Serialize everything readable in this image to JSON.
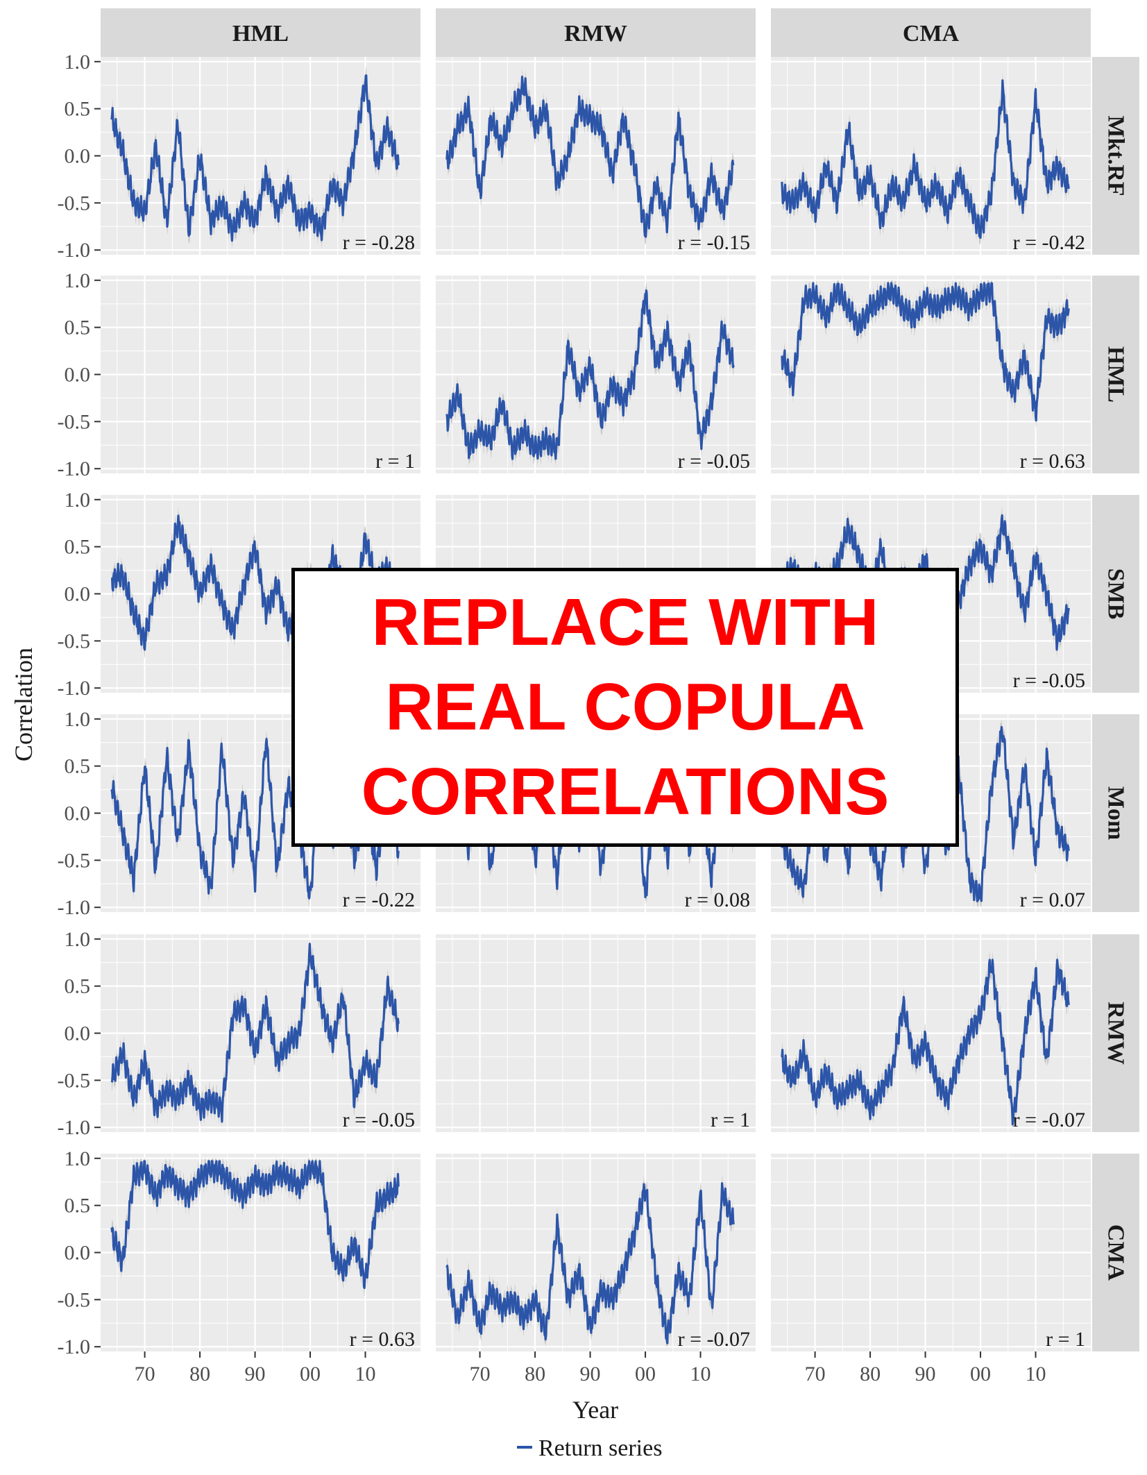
{
  "overlay": {
    "text": "REPLACE WITH\nREAL COPULA\nCORRELATIONS"
  },
  "chart_data": {
    "type": "line",
    "xlabel": "Year",
    "ylabel": "Correlation",
    "legend": {
      "placement": "bottom",
      "entries": [
        "Return series"
      ]
    },
    "colors": {
      "line": "#2c55a8",
      "band": "#c2c2c2",
      "panel": "#ebebeb",
      "grid": "#ffffff",
      "strip": "#d9d9d9"
    },
    "x_ticks": [
      "70",
      "80",
      "90",
      "00",
      "10"
    ],
    "x_tick_values": [
      1970,
      1980,
      1990,
      2000,
      2010
    ],
    "xlim": [
      1962,
      2020
    ],
    "y_ticks": [
      "1.0",
      "0.5",
      "0.0",
      "-0.5",
      "-1.0"
    ],
    "y_tick_values": [
      1.0,
      0.5,
      0.0,
      -0.5,
      -1.0
    ],
    "ylim": [
      -1.05,
      1.05
    ],
    "columns": [
      "HML",
      "RMW",
      "CMA"
    ],
    "rows": [
      "Mkt.RF",
      "HML",
      "SMB",
      "Mom",
      "RMW",
      "CMA"
    ],
    "panels": [
      {
        "row": "Mkt.RF",
        "col": "HML",
        "r_label": "r =  -0.28",
        "x": [
          1964,
          1966,
          1968,
          1970,
          1972,
          1974,
          1976,
          1978,
          1980,
          1982,
          1984,
          1986,
          1988,
          1990,
          1992,
          1994,
          1996,
          1998,
          2000,
          2002,
          2004,
          2006,
          2008,
          2010,
          2012,
          2014,
          2016
        ],
        "y": [
          0.4,
          0.05,
          -0.5,
          -0.6,
          0.1,
          -0.7,
          0.35,
          -0.8,
          0.0,
          -0.7,
          -0.5,
          -0.8,
          -0.5,
          -0.7,
          -0.2,
          -0.6,
          -0.3,
          -0.7,
          -0.6,
          -0.8,
          -0.3,
          -0.5,
          0.05,
          0.8,
          -0.1,
          0.3,
          -0.1
        ]
      },
      {
        "row": "Mkt.RF",
        "col": "RMW",
        "r_label": "r =  -0.15",
        "x": [
          1964,
          1966,
          1968,
          1970,
          1972,
          1974,
          1976,
          1978,
          1980,
          1982,
          1984,
          1986,
          1988,
          1990,
          1992,
          1994,
          1996,
          1998,
          2000,
          2002,
          2004,
          2006,
          2008,
          2010,
          2012,
          2014,
          2016
        ],
        "y": [
          -0.1,
          0.3,
          0.5,
          -0.4,
          0.4,
          0.1,
          0.5,
          0.75,
          0.3,
          0.5,
          -0.3,
          0.0,
          0.5,
          0.4,
          0.3,
          -0.2,
          0.4,
          -0.1,
          -0.8,
          -0.3,
          -0.7,
          0.4,
          -0.4,
          -0.7,
          -0.2,
          -0.6,
          -0.1
        ]
      },
      {
        "row": "Mkt.RF",
        "col": "CMA",
        "r_label": "r =  -0.42",
        "x": [
          1964,
          1966,
          1968,
          1970,
          1972,
          1974,
          1976,
          1978,
          1980,
          1982,
          1984,
          1986,
          1988,
          1990,
          1992,
          1994,
          1996,
          1998,
          2000,
          2002,
          2004,
          2006,
          2008,
          2010,
          2012,
          2014,
          2016
        ],
        "y": [
          -0.4,
          -0.5,
          -0.3,
          -0.6,
          -0.1,
          -0.5,
          0.3,
          -0.4,
          -0.2,
          -0.7,
          -0.3,
          -0.5,
          -0.1,
          -0.5,
          -0.3,
          -0.6,
          -0.2,
          -0.5,
          -0.8,
          -0.4,
          0.7,
          -0.3,
          -0.5,
          0.6,
          -0.3,
          -0.1,
          -0.35
        ]
      },
      {
        "row": "HML",
        "col": "HML",
        "r_label": "r =  1",
        "x": [],
        "y": []
      },
      {
        "row": "HML",
        "col": "RMW",
        "r_label": "r =  -0.05",
        "x": [
          1964,
          1966,
          1968,
          1970,
          1972,
          1974,
          1976,
          1978,
          1980,
          1982,
          1984,
          1986,
          1988,
          1990,
          1992,
          1994,
          1996,
          1998,
          2000,
          2002,
          2004,
          2006,
          2008,
          2010,
          2012,
          2014,
          2016
        ],
        "y": [
          -0.5,
          -0.2,
          -0.8,
          -0.6,
          -0.7,
          -0.3,
          -0.8,
          -0.6,
          -0.8,
          -0.7,
          -0.8,
          0.3,
          -0.2,
          0.1,
          -0.5,
          -0.1,
          -0.3,
          0.0,
          0.85,
          0.1,
          0.45,
          -0.1,
          0.3,
          -0.7,
          -0.3,
          0.5,
          0.1
        ]
      },
      {
        "row": "HML",
        "col": "CMA",
        "r_label": "r =  0.63",
        "x": [
          1964,
          1966,
          1968,
          1970,
          1972,
          1974,
          1976,
          1978,
          1980,
          1982,
          1984,
          1986,
          1988,
          1990,
          1992,
          1994,
          1996,
          1998,
          2000,
          2002,
          2004,
          2006,
          2008,
          2010,
          2012,
          2014,
          2016
        ],
        "y": [
          0.2,
          -0.1,
          0.8,
          0.85,
          0.6,
          0.9,
          0.7,
          0.5,
          0.7,
          0.8,
          0.9,
          0.7,
          0.6,
          0.8,
          0.7,
          0.8,
          0.85,
          0.7,
          0.85,
          0.9,
          0.1,
          -0.2,
          0.2,
          -0.4,
          0.6,
          0.5,
          0.7
        ]
      },
      {
        "row": "SMB",
        "col": "HML",
        "r_label": "",
        "x": [
          1964,
          1966,
          1968,
          1970,
          1972,
          1974,
          1976,
          1978,
          1980,
          1982,
          1984,
          1986,
          1988,
          1990,
          1992,
          1994,
          1996,
          1998,
          2000,
          2002,
          2004,
          2006,
          2008,
          2010,
          2012,
          2014,
          2016
        ],
        "y": [
          0.15,
          0.2,
          -0.2,
          -0.5,
          0.1,
          0.2,
          0.75,
          0.4,
          0.0,
          0.3,
          -0.1,
          -0.4,
          0.1,
          0.5,
          -0.2,
          0.1,
          -0.4,
          0.0,
          0.2,
          -0.3,
          0.4,
          0.1,
          -0.2,
          0.6,
          0.1,
          0.3,
          -0.2
        ]
      },
      {
        "row": "SMB",
        "col": "RMW",
        "r_label": "",
        "x": [],
        "y": []
      },
      {
        "row": "SMB",
        "col": "CMA",
        "r_label": "r =  -0.05",
        "x": [
          1964,
          1966,
          1968,
          1970,
          1972,
          1974,
          1976,
          1978,
          1980,
          1982,
          1984,
          1986,
          1988,
          1990,
          1992,
          1994,
          1996,
          1998,
          2000,
          2002,
          2004,
          2006,
          2008,
          2010,
          2012,
          2014,
          2016
        ],
        "y": [
          0.1,
          0.3,
          0.0,
          0.2,
          0.1,
          0.3,
          0.7,
          0.4,
          0.0,
          0.5,
          -0.2,
          0.2,
          0.0,
          0.4,
          -0.3,
          0.1,
          -0.1,
          0.3,
          0.5,
          0.2,
          0.75,
          0.3,
          -0.2,
          0.4,
          0.0,
          -0.5,
          -0.15
        ]
      },
      {
        "row": "Mom",
        "col": "HML",
        "r_label": "r =  -0.22",
        "x": [
          1964,
          1966,
          1968,
          1970,
          1972,
          1974,
          1976,
          1978,
          1980,
          1982,
          1984,
          1986,
          1988,
          1990,
          1992,
          1994,
          1996,
          1998,
          2000,
          2002,
          2004,
          2006,
          2008,
          2010,
          2012,
          2014,
          2016
        ],
        "y": [
          0.3,
          -0.2,
          -0.7,
          0.5,
          -0.6,
          0.6,
          -0.3,
          0.7,
          -0.4,
          -0.8,
          0.7,
          -0.5,
          0.2,
          -0.7,
          0.8,
          -0.6,
          0.3,
          -0.2,
          -0.9,
          0.6,
          -0.3,
          0.4,
          -0.5,
          0.1,
          -0.6,
          0.3,
          -0.4
        ]
      },
      {
        "row": "Mom",
        "col": "RMW",
        "r_label": "r =  0.08",
        "x": [
          1964,
          1966,
          1968,
          1970,
          1972,
          1974,
          1976,
          1978,
          1980,
          1982,
          1984,
          1986,
          1988,
          1990,
          1992,
          1994,
          1996,
          1998,
          2000,
          2002,
          2004,
          2006,
          2008,
          2010,
          2012,
          2014,
          2016
        ],
        "y": [
          -0.2,
          0.3,
          -0.4,
          0.4,
          -0.6,
          0.5,
          -0.3,
          0.6,
          -0.5,
          0.2,
          -0.7,
          0.5,
          -0.3,
          0.4,
          -0.6,
          0.3,
          -0.2,
          0.5,
          -0.9,
          0.4,
          -0.5,
          0.6,
          -0.4,
          0.2,
          -0.7,
          0.5,
          -0.3
        ]
      },
      {
        "row": "Mom",
        "col": "CMA",
        "r_label": "r =  0.07",
        "x": [
          1964,
          1966,
          1968,
          1970,
          1972,
          1974,
          1976,
          1978,
          1980,
          1982,
          1984,
          1986,
          1988,
          1990,
          1992,
          1994,
          1996,
          1998,
          2000,
          2002,
          2004,
          2006,
          2008,
          2010,
          2012,
          2014,
          2016
        ],
        "y": [
          -0.3,
          -0.6,
          -0.8,
          0.2,
          -0.5,
          0.4,
          -0.6,
          0.5,
          -0.3,
          -0.7,
          0.3,
          -0.5,
          0.4,
          -0.6,
          0.2,
          -0.4,
          0.5,
          -0.7,
          -0.9,
          0.3,
          0.9,
          -0.3,
          0.5,
          -0.5,
          0.6,
          -0.2,
          -0.4
        ]
      },
      {
        "row": "RMW",
        "col": "HML",
        "r_label": "r =  -0.05",
        "x": [
          1964,
          1966,
          1968,
          1970,
          1972,
          1974,
          1976,
          1978,
          1980,
          1982,
          1984,
          1986,
          1988,
          1990,
          1992,
          1994,
          1996,
          1998,
          2000,
          2002,
          2004,
          2006,
          2008,
          2010,
          2012,
          2014,
          2016
        ],
        "y": [
          -0.5,
          -0.2,
          -0.7,
          -0.3,
          -0.8,
          -0.6,
          -0.7,
          -0.5,
          -0.8,
          -0.7,
          -0.8,
          0.2,
          0.3,
          -0.2,
          0.3,
          -0.3,
          -0.1,
          0.0,
          0.85,
          0.3,
          -0.1,
          0.4,
          -0.7,
          -0.3,
          -0.5,
          0.5,
          0.1
        ]
      },
      {
        "row": "RMW",
        "col": "RMW",
        "r_label": "r =  1",
        "x": [],
        "y": []
      },
      {
        "row": "RMW",
        "col": "CMA",
        "r_label": "r =  -0.07",
        "x": [
          1964,
          1966,
          1968,
          1970,
          1972,
          1974,
          1976,
          1978,
          1980,
          1982,
          1984,
          1986,
          1988,
          1990,
          1992,
          1994,
          1996,
          1998,
          2000,
          2002,
          2004,
          2006,
          2008,
          2010,
          2012,
          2014,
          2016
        ],
        "y": [
          -0.3,
          -0.5,
          -0.2,
          -0.7,
          -0.4,
          -0.7,
          -0.6,
          -0.5,
          -0.8,
          -0.6,
          -0.4,
          0.3,
          -0.3,
          -0.1,
          -0.5,
          -0.7,
          -0.3,
          0.0,
          0.2,
          0.75,
          -0.1,
          -0.9,
          0.0,
          0.6,
          -0.3,
          0.7,
          0.3
        ]
      },
      {
        "row": "CMA",
        "col": "HML",
        "r_label": "r =  0.63",
        "x": [
          1964,
          1966,
          1968,
          1970,
          1972,
          1974,
          1976,
          1978,
          1980,
          1982,
          1984,
          1986,
          1988,
          1990,
          1992,
          1994,
          1996,
          1998,
          2000,
          2002,
          2004,
          2006,
          2008,
          2010,
          2012,
          2014,
          2016
        ],
        "y": [
          0.2,
          -0.1,
          0.8,
          0.9,
          0.6,
          0.85,
          0.7,
          0.6,
          0.8,
          0.9,
          0.85,
          0.7,
          0.6,
          0.8,
          0.7,
          0.85,
          0.8,
          0.7,
          0.9,
          0.85,
          0.0,
          -0.2,
          0.1,
          -0.3,
          0.5,
          0.6,
          0.7
        ]
      },
      {
        "row": "CMA",
        "col": "RMW",
        "r_label": "r =  -0.07",
        "x": [
          1964,
          1966,
          1968,
          1970,
          1972,
          1974,
          1976,
          1978,
          1980,
          1982,
          1984,
          1986,
          1988,
          1990,
          1992,
          1994,
          1996,
          1998,
          2000,
          2002,
          2004,
          2006,
          2008,
          2010,
          2012,
          2014,
          2016
        ],
        "y": [
          -0.2,
          -0.7,
          -0.3,
          -0.8,
          -0.4,
          -0.6,
          -0.5,
          -0.7,
          -0.5,
          -0.85,
          0.3,
          -0.5,
          -0.2,
          -0.8,
          -0.4,
          -0.5,
          -0.2,
          0.2,
          0.7,
          -0.3,
          -0.9,
          -0.2,
          -0.5,
          0.6,
          -0.6,
          0.65,
          0.3
        ]
      },
      {
        "row": "CMA",
        "col": "CMA",
        "r_label": "r =  1",
        "x": [],
        "y": []
      }
    ]
  }
}
